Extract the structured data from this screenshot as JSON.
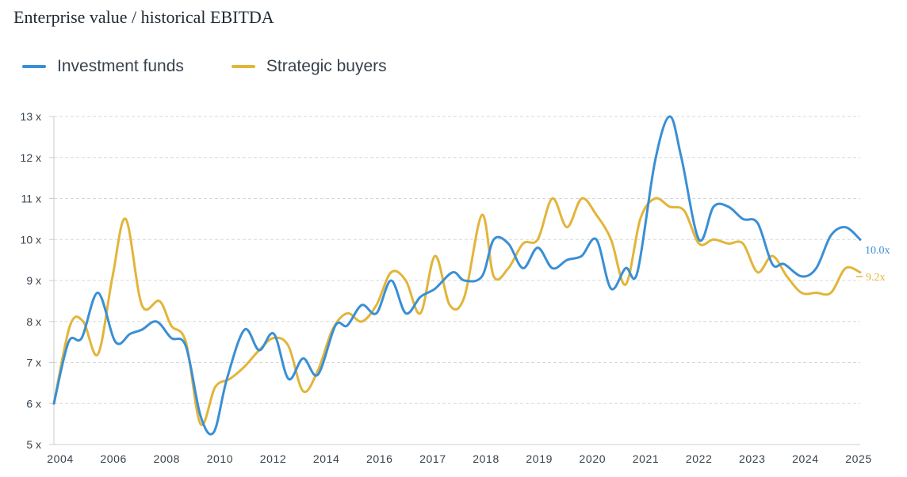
{
  "title": "Enterprise value / historical EBITDA",
  "colors": {
    "investment_funds": "#3a8fd4",
    "strategic_buyers": "#e2b53a",
    "grid": "#d6d9dc",
    "axis": "#c8ccd0",
    "text": "#37424c"
  },
  "chart_data": {
    "type": "line",
    "title": "Enterprise value / historical EBITDA",
    "xlabel": "",
    "ylabel": "",
    "xlim": [
      2004,
      2025
    ],
    "ylim": [
      5,
      13
    ],
    "grid": "horizontal dashed",
    "legend_position": "top-left",
    "x_tick_labels": [
      "2004",
      "2006",
      "2008",
      "2010",
      "2012",
      "2014",
      "2016",
      "2017",
      "2018",
      "2019",
      "2020",
      "2021",
      "2022",
      "2023",
      "2024",
      "2025"
    ],
    "y_tick_labels": [
      "5 x",
      "6 x",
      "7 x",
      "8 x",
      "9 x",
      "10 x",
      "11 x",
      "12 x",
      "13 x"
    ],
    "y_ticks": [
      5,
      6,
      7,
      8,
      9,
      10,
      11,
      12,
      13
    ],
    "series": [
      {
        "name": "Investment funds",
        "color": "#3a8fd4",
        "end_label": "10.0x",
        "points": [
          [
            0,
            6.0
          ],
          [
            0.5,
            7.5
          ],
          [
            0.95,
            7.6
          ],
          [
            1.5,
            8.7
          ],
          [
            2.1,
            7.5
          ],
          [
            2.6,
            7.7
          ],
          [
            3.0,
            7.8
          ],
          [
            3.5,
            8.0
          ],
          [
            4.0,
            7.6
          ],
          [
            4.5,
            7.4
          ],
          [
            5.0,
            5.7
          ],
          [
            5.45,
            5.3
          ],
          [
            5.9,
            6.6
          ],
          [
            6.5,
            7.8
          ],
          [
            7.0,
            7.3
          ],
          [
            7.5,
            7.7
          ],
          [
            8.0,
            6.6
          ],
          [
            8.5,
            7.1
          ],
          [
            9.0,
            6.7
          ],
          [
            9.6,
            7.9
          ],
          [
            10.0,
            7.9
          ],
          [
            10.5,
            8.4
          ],
          [
            11.0,
            8.2
          ],
          [
            11.5,
            9.0
          ],
          [
            12.0,
            8.2
          ],
          [
            12.5,
            8.6
          ],
          [
            13.0,
            8.8
          ],
          [
            13.6,
            9.2
          ],
          [
            14.0,
            9.0
          ],
          [
            14.6,
            9.1
          ],
          [
            15.0,
            10.0
          ],
          [
            15.5,
            9.9
          ],
          [
            16.0,
            9.3
          ],
          [
            16.5,
            9.8
          ],
          [
            17.0,
            9.3
          ],
          [
            17.5,
            9.5
          ],
          [
            18.0,
            9.6
          ],
          [
            18.5,
            10.0
          ],
          [
            19.0,
            8.8
          ],
          [
            19.5,
            9.3
          ],
          [
            19.9,
            9.2
          ],
          [
            20.5,
            11.9
          ],
          [
            21.0,
            13.0
          ],
          [
            21.4,
            12.0
          ],
          [
            22.0,
            10.0
          ],
          [
            22.5,
            10.8
          ],
          [
            23.0,
            10.8
          ],
          [
            23.5,
            10.5
          ],
          [
            24.0,
            10.4
          ],
          [
            24.5,
            9.4
          ],
          [
            24.9,
            9.4
          ],
          [
            25.5,
            9.1
          ],
          [
            26.0,
            9.3
          ],
          [
            26.5,
            10.1
          ],
          [
            27.0,
            10.3
          ],
          [
            27.5,
            10.0
          ]
        ]
      },
      {
        "name": "Strategic buyers",
        "color": "#e2b53a",
        "end_label": "9.2x",
        "points": [
          [
            0,
            6.0
          ],
          [
            0.55,
            7.9
          ],
          [
            1.0,
            8.0
          ],
          [
            1.5,
            7.2
          ],
          [
            2.0,
            9.1
          ],
          [
            2.45,
            10.5
          ],
          [
            3.0,
            8.4
          ],
          [
            3.6,
            8.5
          ],
          [
            4.0,
            7.9
          ],
          [
            4.5,
            7.5
          ],
          [
            5.0,
            5.5
          ],
          [
            5.5,
            6.4
          ],
          [
            6.0,
            6.6
          ],
          [
            6.5,
            6.9
          ],
          [
            7.0,
            7.3
          ],
          [
            7.5,
            7.6
          ],
          [
            8.0,
            7.4
          ],
          [
            8.5,
            6.3
          ],
          [
            9.0,
            6.8
          ],
          [
            9.5,
            7.8
          ],
          [
            10.0,
            8.2
          ],
          [
            10.5,
            8.0
          ],
          [
            11.0,
            8.4
          ],
          [
            11.5,
            9.2
          ],
          [
            12.0,
            9.0
          ],
          [
            12.5,
            8.2
          ],
          [
            13.0,
            9.6
          ],
          [
            13.5,
            8.4
          ],
          [
            14.0,
            8.6
          ],
          [
            14.6,
            10.6
          ],
          [
            15.0,
            9.1
          ],
          [
            15.5,
            9.3
          ],
          [
            16.0,
            9.9
          ],
          [
            16.5,
            10.0
          ],
          [
            17.0,
            11.0
          ],
          [
            17.5,
            10.3
          ],
          [
            18.0,
            11.0
          ],
          [
            18.5,
            10.6
          ],
          [
            19.0,
            10.0
          ],
          [
            19.5,
            8.9
          ],
          [
            20.0,
            10.5
          ],
          [
            20.5,
            11.0
          ],
          [
            21.0,
            10.8
          ],
          [
            21.5,
            10.7
          ],
          [
            22.0,
            9.9
          ],
          [
            22.5,
            10.0
          ],
          [
            23.0,
            9.9
          ],
          [
            23.5,
            9.9
          ],
          [
            24.0,
            9.2
          ],
          [
            24.5,
            9.6
          ],
          [
            25.0,
            9.1
          ],
          [
            25.5,
            8.7
          ],
          [
            26.0,
            8.7
          ],
          [
            26.5,
            8.7
          ],
          [
            27.0,
            9.3
          ],
          [
            27.5,
            9.2
          ]
        ]
      }
    ]
  }
}
